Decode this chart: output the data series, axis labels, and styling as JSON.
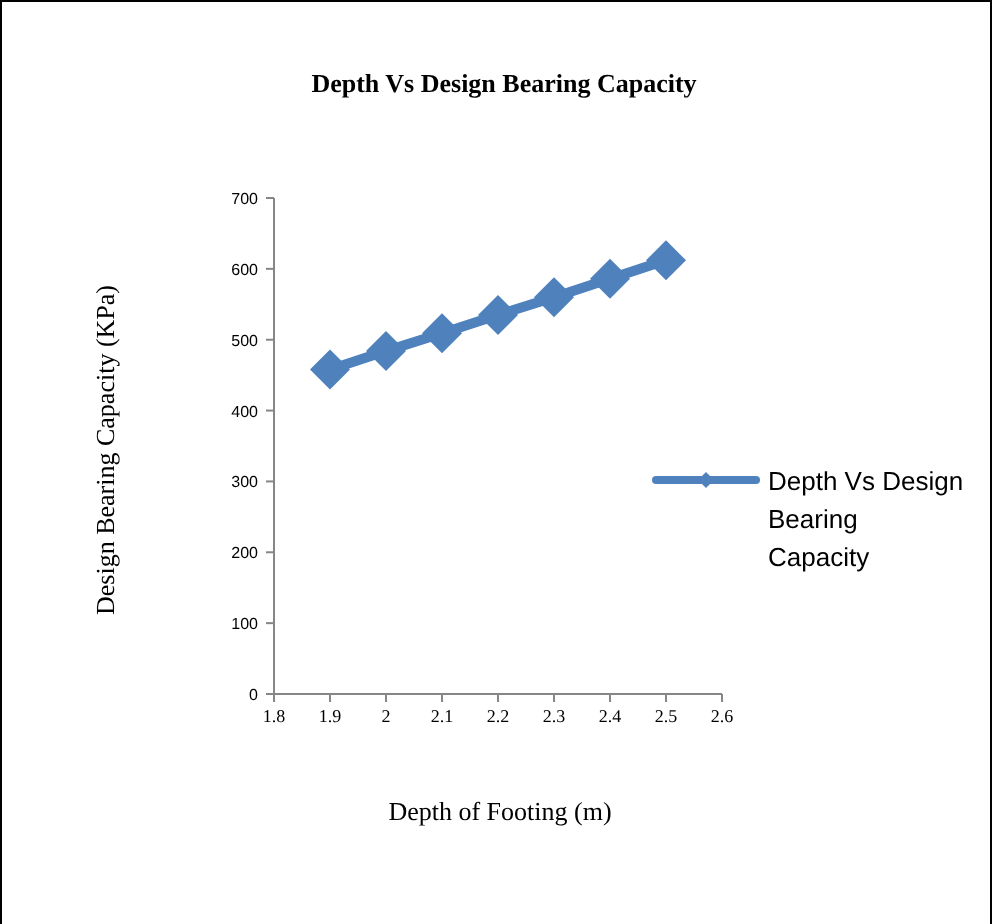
{
  "chart_data": {
    "type": "line",
    "title": "Depth Vs Design Bearing Capacity",
    "xlabel": "Depth of Footing (m)",
    "ylabel": "Design Bearing Capacity (KPa)",
    "x": [
      1.9,
      2,
      2.1,
      2.2,
      2.3,
      2.4,
      2.5
    ],
    "series": [
      {
        "name": "Depth Vs Design Bearing Capacity",
        "color": "#4f81bd",
        "values": [
          458,
          484,
          509,
          535,
          560,
          586,
          612
        ]
      }
    ],
    "xlim": [
      1.8,
      2.6
    ],
    "xticks": [
      1.8,
      1.9,
      2,
      2.1,
      2.2,
      2.3,
      2.4,
      2.5,
      2.6
    ],
    "ylim": [
      0,
      700
    ],
    "yticks": [
      0,
      100,
      200,
      300,
      400,
      500,
      600,
      700
    ],
    "grid": false,
    "legend": "right",
    "marker": "diamond",
    "line_style": "solid"
  }
}
